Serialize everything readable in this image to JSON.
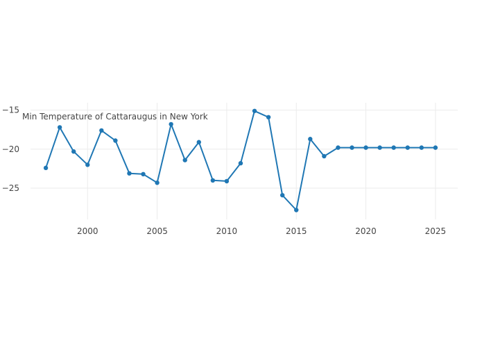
{
  "chart_data": {
    "type": "line",
    "title": "Min Temperature of Cattaraugus in New York",
    "xlabel": "",
    "ylabel": "",
    "series_color": "#1f77b4",
    "grid": true,
    "x": [
      1997,
      1998,
      1999,
      2000,
      2001,
      2002,
      2003,
      2004,
      2005,
      2006,
      2007,
      2008,
      2009,
      2010,
      2011,
      2012,
      2013,
      2014,
      2015,
      2016,
      2017,
      2018,
      2019,
      2020,
      2021,
      2022,
      2023,
      2024,
      2025
    ],
    "y": [
      -22.4,
      -17.2,
      -20.3,
      -22.0,
      -17.6,
      -18.9,
      -23.1,
      -23.2,
      -24.3,
      -16.8,
      -21.4,
      -19.1,
      -24.0,
      -24.1,
      -21.8,
      -15.1,
      -15.9,
      -25.9,
      -27.8,
      -18.7,
      -20.9,
      -19.8,
      -19.8,
      -19.8,
      -19.8,
      -19.8,
      -19.8,
      -19.8,
      -19.8
    ],
    "xlim": [
      1995.9,
      2026.6
    ],
    "ylim": [
      -29,
      -14.05
    ],
    "xticks": [
      2000,
      2005,
      2010,
      2015,
      2020,
      2025
    ],
    "yticks": [
      -15,
      -20,
      -25
    ],
    "yticklabels": [
      "−15",
      "−20",
      "−25"
    ]
  }
}
